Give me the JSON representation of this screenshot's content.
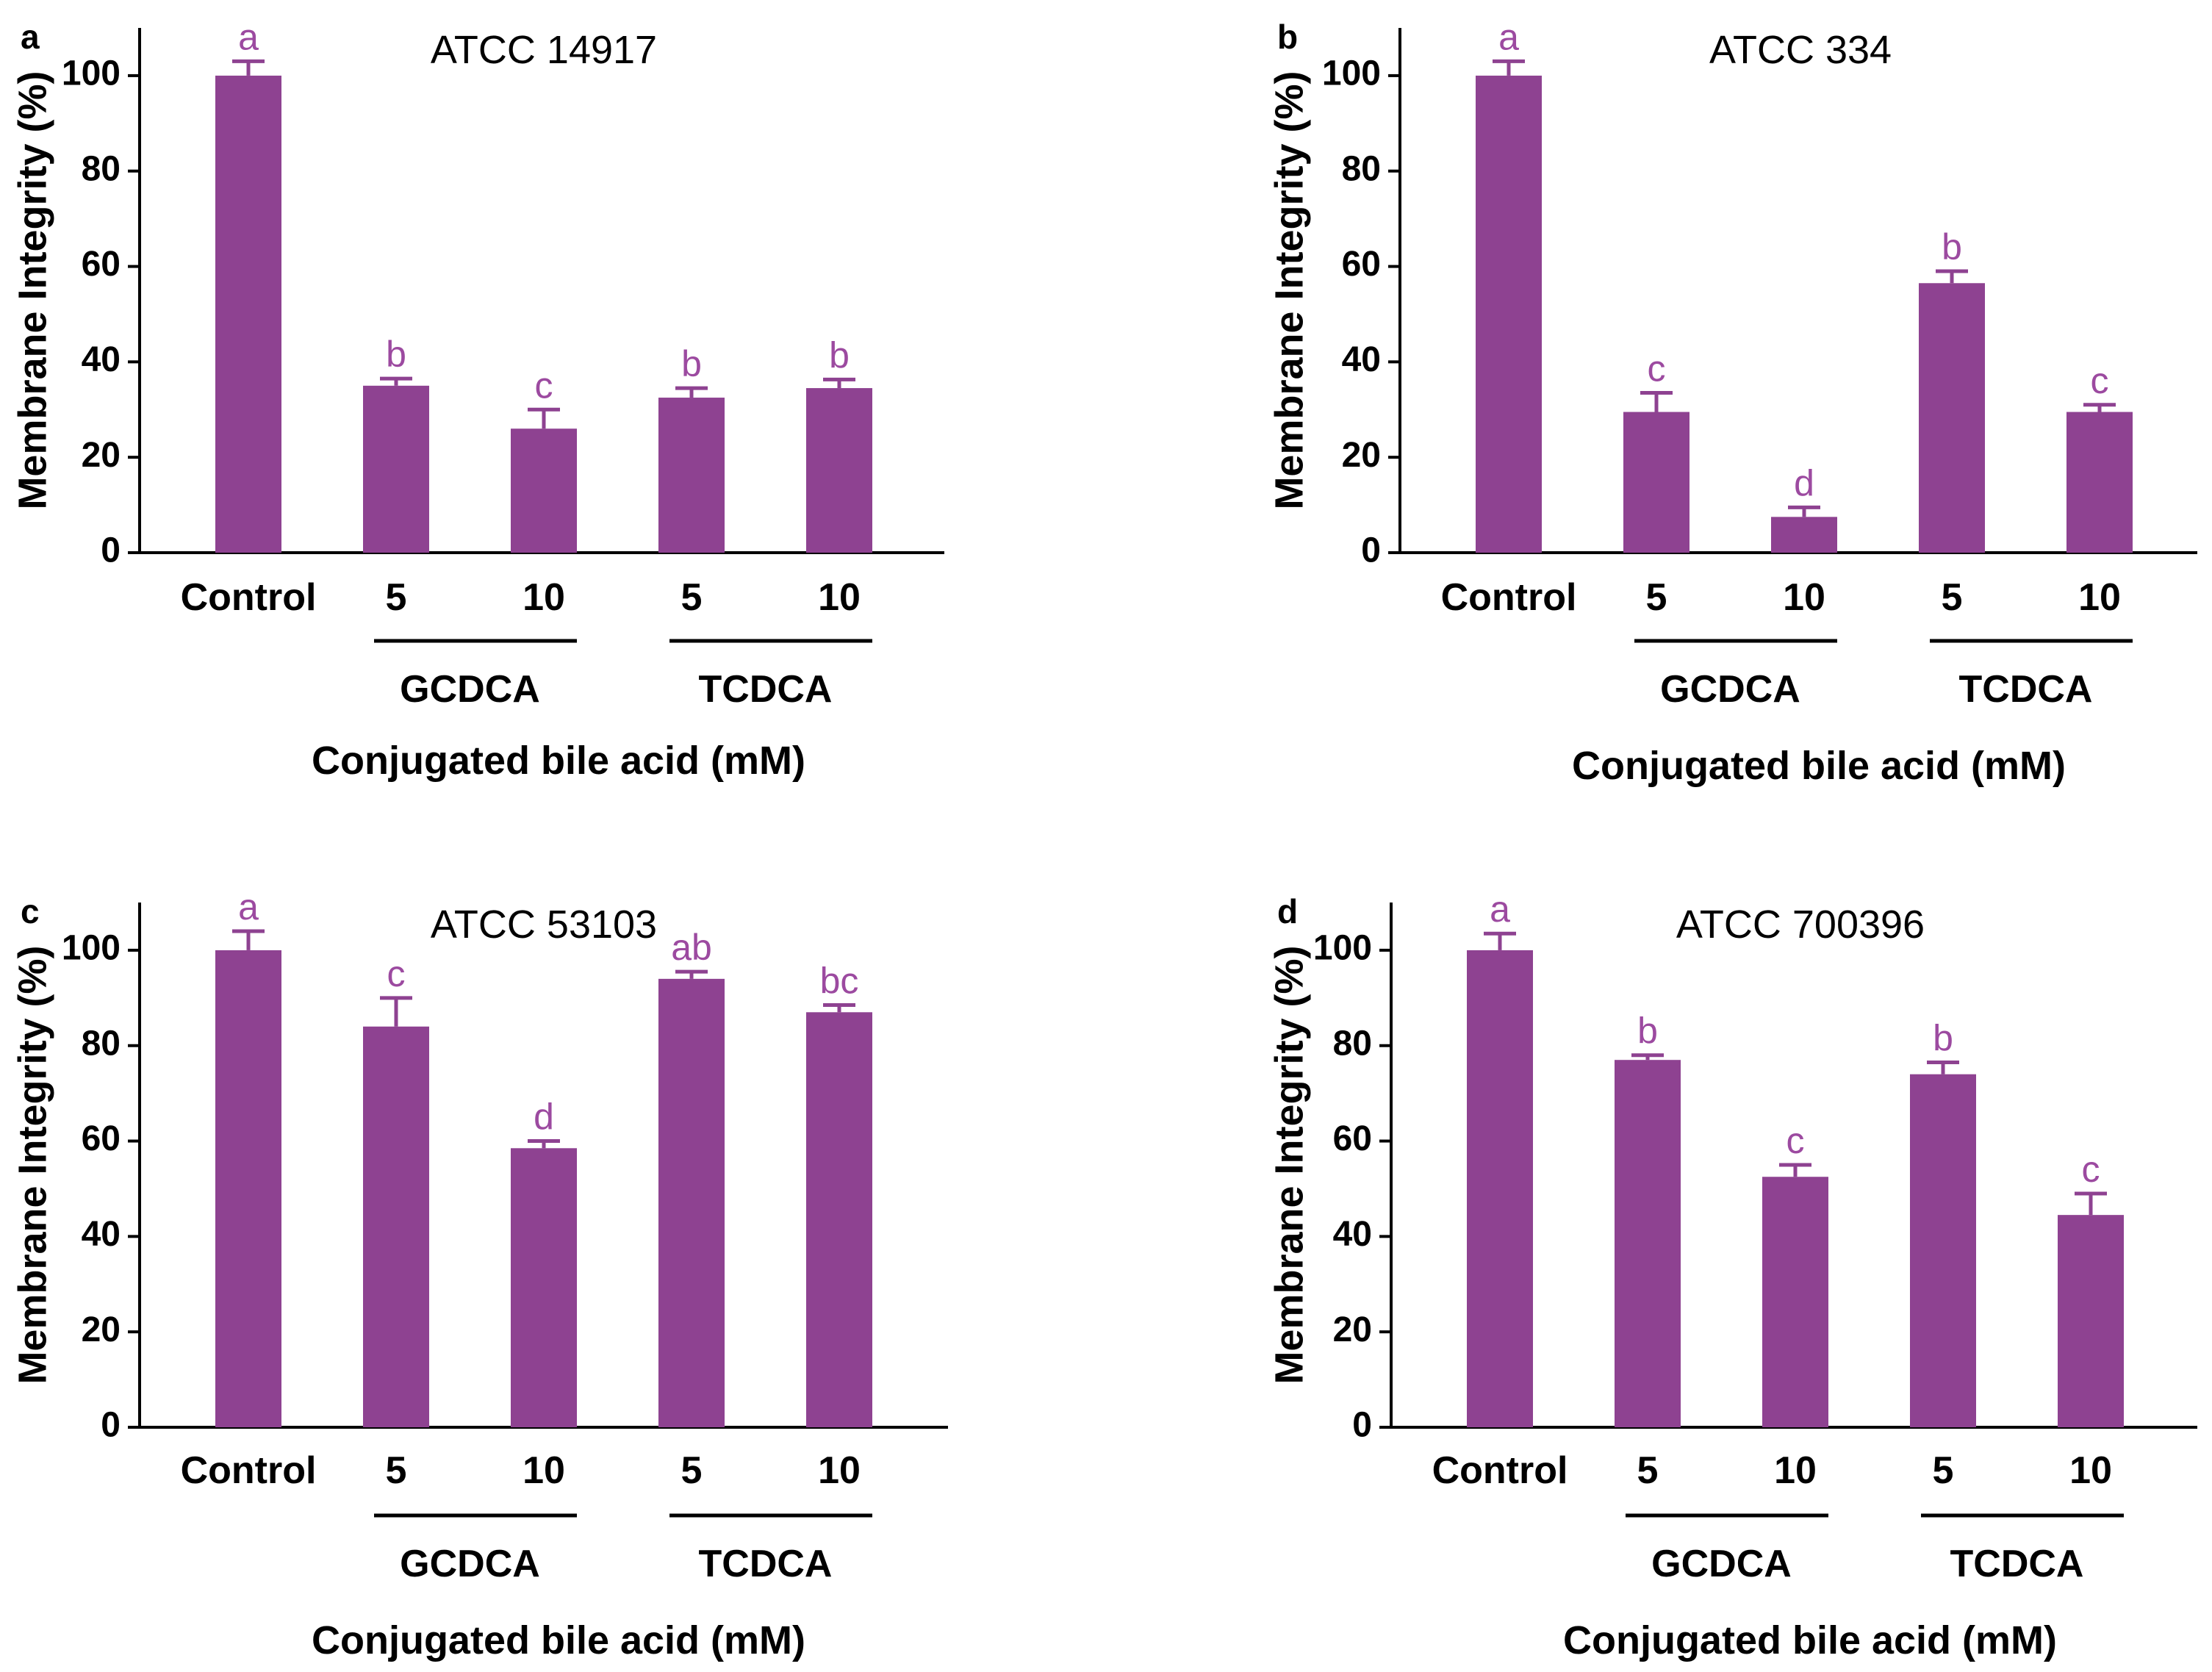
{
  "colors": {
    "bar": "#8e4291",
    "letters": "#9c4aa0",
    "axis": "#000000"
  },
  "chart_data": [
    {
      "type": "bar",
      "panel_label": "a",
      "title": "ATCC 14917",
      "ylabel": "Membrane Integrity (%)",
      "xlabel": "Conjugated bile acid (mM)",
      "categories": [
        "Control",
        "5",
        "10",
        "5",
        "10"
      ],
      "groups": [
        {
          "name": "GCDCA",
          "categories": [
            "5",
            "10"
          ]
        },
        {
          "name": "TCDCA",
          "categories": [
            "5",
            "10"
          ]
        }
      ],
      "values": [
        100,
        35,
        26,
        32.5,
        34.5
      ],
      "errors": [
        3,
        1.5,
        4,
        2,
        1.8
      ],
      "significance": [
        "a",
        "b",
        "c",
        "b",
        "b"
      ],
      "ylim": [
        0,
        110
      ],
      "yticks": [
        "0",
        "20",
        "40",
        "60",
        "80",
        "100"
      ],
      "grid": false
    },
    {
      "type": "bar",
      "panel_label": "b",
      "title": "ATCC 334",
      "ylabel": "Membrane Integrity (%)",
      "xlabel": "Conjugated bile acid (mM)",
      "categories": [
        "Control",
        "5",
        "10",
        "5",
        "10"
      ],
      "groups": [
        {
          "name": "GCDCA",
          "categories": [
            "5",
            "10"
          ]
        },
        {
          "name": "TCDCA",
          "categories": [
            "5",
            "10"
          ]
        }
      ],
      "values": [
        100,
        29.5,
        7.5,
        56.5,
        29.5
      ],
      "errors": [
        3,
        4,
        2,
        2.5,
        1.5
      ],
      "significance": [
        "a",
        "c",
        "d",
        "b",
        "c"
      ],
      "ylim": [
        0,
        110
      ],
      "yticks": [
        "0",
        "20",
        "40",
        "60",
        "80",
        "100"
      ],
      "grid": false
    },
    {
      "type": "bar",
      "panel_label": "c",
      "title": "ATCC 53103",
      "ylabel": "Membrane Integrity (%)",
      "xlabel": "Conjugated bile acid (mM)",
      "categories": [
        "Control",
        "5",
        "10",
        "5",
        "10"
      ],
      "groups": [
        {
          "name": "GCDCA",
          "categories": [
            "5",
            "10"
          ]
        },
        {
          "name": "TCDCA",
          "categories": [
            "5",
            "10"
          ]
        }
      ],
      "values": [
        100,
        84,
        58.5,
        94,
        87
      ],
      "errors": [
        4,
        6,
        1.5,
        1.5,
        1.5
      ],
      "significance": [
        "a",
        "c",
        "d",
        "ab",
        "bc"
      ],
      "ylim": [
        0,
        110
      ],
      "yticks": [
        "0",
        "20",
        "40",
        "60",
        "80",
        "100"
      ],
      "grid": false
    },
    {
      "type": "bar",
      "panel_label": "d",
      "title": "ATCC 700396",
      "ylabel": "Membrane Integrity (%)",
      "xlabel": "Conjugated bile acid (mM)",
      "categories": [
        "Control",
        "5",
        "10",
        "5",
        "10"
      ],
      "groups": [
        {
          "name": "GCDCA",
          "categories": [
            "5",
            "10"
          ]
        },
        {
          "name": "TCDCA",
          "categories": [
            "5",
            "10"
          ]
        }
      ],
      "values": [
        100,
        77,
        52.5,
        74,
        44.5
      ],
      "errors": [
        3.5,
        1,
        2.5,
        2.5,
        4.5
      ],
      "significance": [
        "a",
        "b",
        "c",
        "b",
        "c"
      ],
      "ylim": [
        0,
        110
      ],
      "yticks": [
        "0",
        "20",
        "40",
        "60",
        "80",
        "100"
      ],
      "grid": false
    }
  ]
}
